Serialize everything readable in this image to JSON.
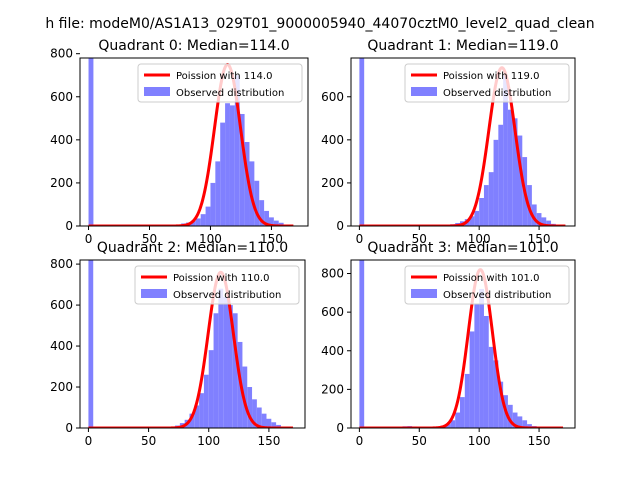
{
  "figure": {
    "suptitle": "h file: modeM0/AS1A13_029T01_9000005940_44070cztM0_level2_quad_clean"
  },
  "chart_data": [
    {
      "type": "bar",
      "title": "Quadrant 0: Median=114.0",
      "median": 114.0,
      "xlim": [
        -7,
        180
      ],
      "ylim": [
        0,
        780
      ],
      "xticks": [
        0,
        50,
        100,
        150
      ],
      "yticks": [
        0,
        200,
        400,
        600,
        800
      ],
      "hist": {
        "bin_width": 4,
        "bins": [
          [
            0,
            900
          ],
          [
            64,
            2
          ],
          [
            68,
            3
          ],
          [
            72,
            6
          ],
          [
            76,
            12
          ],
          [
            80,
            16
          ],
          [
            84,
            24
          ],
          [
            88,
            35
          ],
          [
            92,
            55
          ],
          [
            96,
            90
          ],
          [
            100,
            200
          ],
          [
            104,
            300
          ],
          [
            108,
            480
          ],
          [
            112,
            570
          ],
          [
            116,
            560
          ],
          [
            120,
            700
          ],
          [
            124,
            520
          ],
          [
            128,
            390
          ],
          [
            132,
            300
          ],
          [
            136,
            210
          ],
          [
            140,
            120
          ],
          [
            144,
            70
          ],
          [
            148,
            40
          ],
          [
            152,
            25
          ],
          [
            156,
            15
          ],
          [
            160,
            6
          ]
        ]
      },
      "curve": {
        "name": "Poission with 114.0",
        "x": [
          0,
          168
        ],
        "mean": 114.0,
        "peak": 750
      },
      "legend": {
        "placement": "upper right",
        "entries": [
          "Poission with 114.0",
          "Observed distribution"
        ]
      }
    },
    {
      "type": "bar",
      "title": "Quadrant 1: Median=119.0",
      "median": 119.0,
      "xlim": [
        -7,
        180
      ],
      "ylim": [
        0,
        780
      ],
      "xticks": [
        0,
        50,
        100,
        150
      ],
      "yticks": [
        0,
        200,
        400,
        600
      ],
      "hist": {
        "bin_width": 4,
        "bins": [
          [
            0,
            900
          ],
          [
            68,
            2
          ],
          [
            72,
            4
          ],
          [
            76,
            8
          ],
          [
            80,
            14
          ],
          [
            84,
            22
          ],
          [
            88,
            32
          ],
          [
            92,
            45
          ],
          [
            96,
            70
          ],
          [
            100,
            130
          ],
          [
            104,
            190
          ],
          [
            108,
            250
          ],
          [
            112,
            400
          ],
          [
            116,
            470
          ],
          [
            120,
            700
          ],
          [
            124,
            540
          ],
          [
            128,
            500
          ],
          [
            132,
            420
          ],
          [
            136,
            320
          ],
          [
            140,
            190
          ],
          [
            144,
            100
          ],
          [
            148,
            60
          ],
          [
            152,
            40
          ],
          [
            156,
            25
          ],
          [
            160,
            10
          ],
          [
            164,
            4
          ]
        ]
      },
      "curve": {
        "name": "Poission with 119.0",
        "x": [
          0,
          172
        ],
        "mean": 119.0,
        "peak": 735
      },
      "legend": {
        "placement": "upper right",
        "entries": [
          "Poission with 119.0",
          "Observed distribution"
        ]
      }
    },
    {
      "type": "bar",
      "title": "Quadrant 2: Median=110.0",
      "median": 110.0,
      "xlim": [
        -7,
        180
      ],
      "ylim": [
        0,
        820
      ],
      "xticks": [
        0,
        50,
        100,
        150
      ],
      "yticks": [
        0,
        200,
        400,
        600,
        800
      ],
      "hist": {
        "bin_width": 4,
        "bins": [
          [
            0,
            900
          ],
          [
            64,
            2
          ],
          [
            68,
            5
          ],
          [
            72,
            12
          ],
          [
            76,
            24
          ],
          [
            80,
            40
          ],
          [
            84,
            70
          ],
          [
            88,
            110
          ],
          [
            92,
            170
          ],
          [
            96,
            260
          ],
          [
            100,
            380
          ],
          [
            104,
            560
          ],
          [
            108,
            680
          ],
          [
            112,
            640
          ],
          [
            116,
            600
          ],
          [
            120,
            560
          ],
          [
            124,
            420
          ],
          [
            128,
            300
          ],
          [
            132,
            200
          ],
          [
            136,
            140
          ],
          [
            140,
            100
          ],
          [
            144,
            70
          ],
          [
            148,
            45
          ],
          [
            152,
            28
          ],
          [
            156,
            15
          ],
          [
            160,
            7
          ]
        ]
      },
      "curve": {
        "name": "Poission with 110.0",
        "x": [
          0,
          170
        ],
        "mean": 110.0,
        "peak": 760
      },
      "legend": {
        "placement": "upper right",
        "entries": [
          "Poission with 110.0",
          "Observed distribution"
        ]
      }
    },
    {
      "type": "bar",
      "title": "Quadrant 3: Median=101.0",
      "median": 101.0,
      "xlim": [
        -7,
        180
      ],
      "ylim": [
        0,
        870
      ],
      "xticks": [
        0,
        50,
        100,
        150
      ],
      "yticks": [
        0,
        200,
        400,
        600,
        800
      ],
      "hist": {
        "bin_width": 4,
        "bins": [
          [
            0,
            900
          ],
          [
            20,
            3
          ],
          [
            24,
            4
          ],
          [
            28,
            5
          ],
          [
            32,
            6
          ],
          [
            36,
            9
          ],
          [
            40,
            10
          ],
          [
            44,
            8
          ],
          [
            48,
            6
          ],
          [
            52,
            5
          ],
          [
            56,
            5
          ],
          [
            60,
            6
          ],
          [
            64,
            8
          ],
          [
            68,
            12
          ],
          [
            72,
            20
          ],
          [
            76,
            40
          ],
          [
            80,
            80
          ],
          [
            84,
            160
          ],
          [
            88,
            280
          ],
          [
            92,
            500
          ],
          [
            96,
            640
          ],
          [
            100,
            720
          ],
          [
            104,
            580
          ],
          [
            108,
            420
          ],
          [
            112,
            350
          ],
          [
            116,
            240
          ],
          [
            120,
            170
          ],
          [
            124,
            120
          ],
          [
            128,
            80
          ],
          [
            132,
            60
          ],
          [
            136,
            40
          ],
          [
            140,
            20
          ],
          [
            144,
            10
          ],
          [
            148,
            5
          ]
        ]
      },
      "curve": {
        "name": "Poission with 101.0",
        "x": [
          0,
          170
        ],
        "mean": 101.0,
        "peak": 820
      },
      "legend": {
        "placement": "upper right",
        "entries": [
          "Poission with 101.0",
          "Observed distribution"
        ]
      }
    }
  ]
}
